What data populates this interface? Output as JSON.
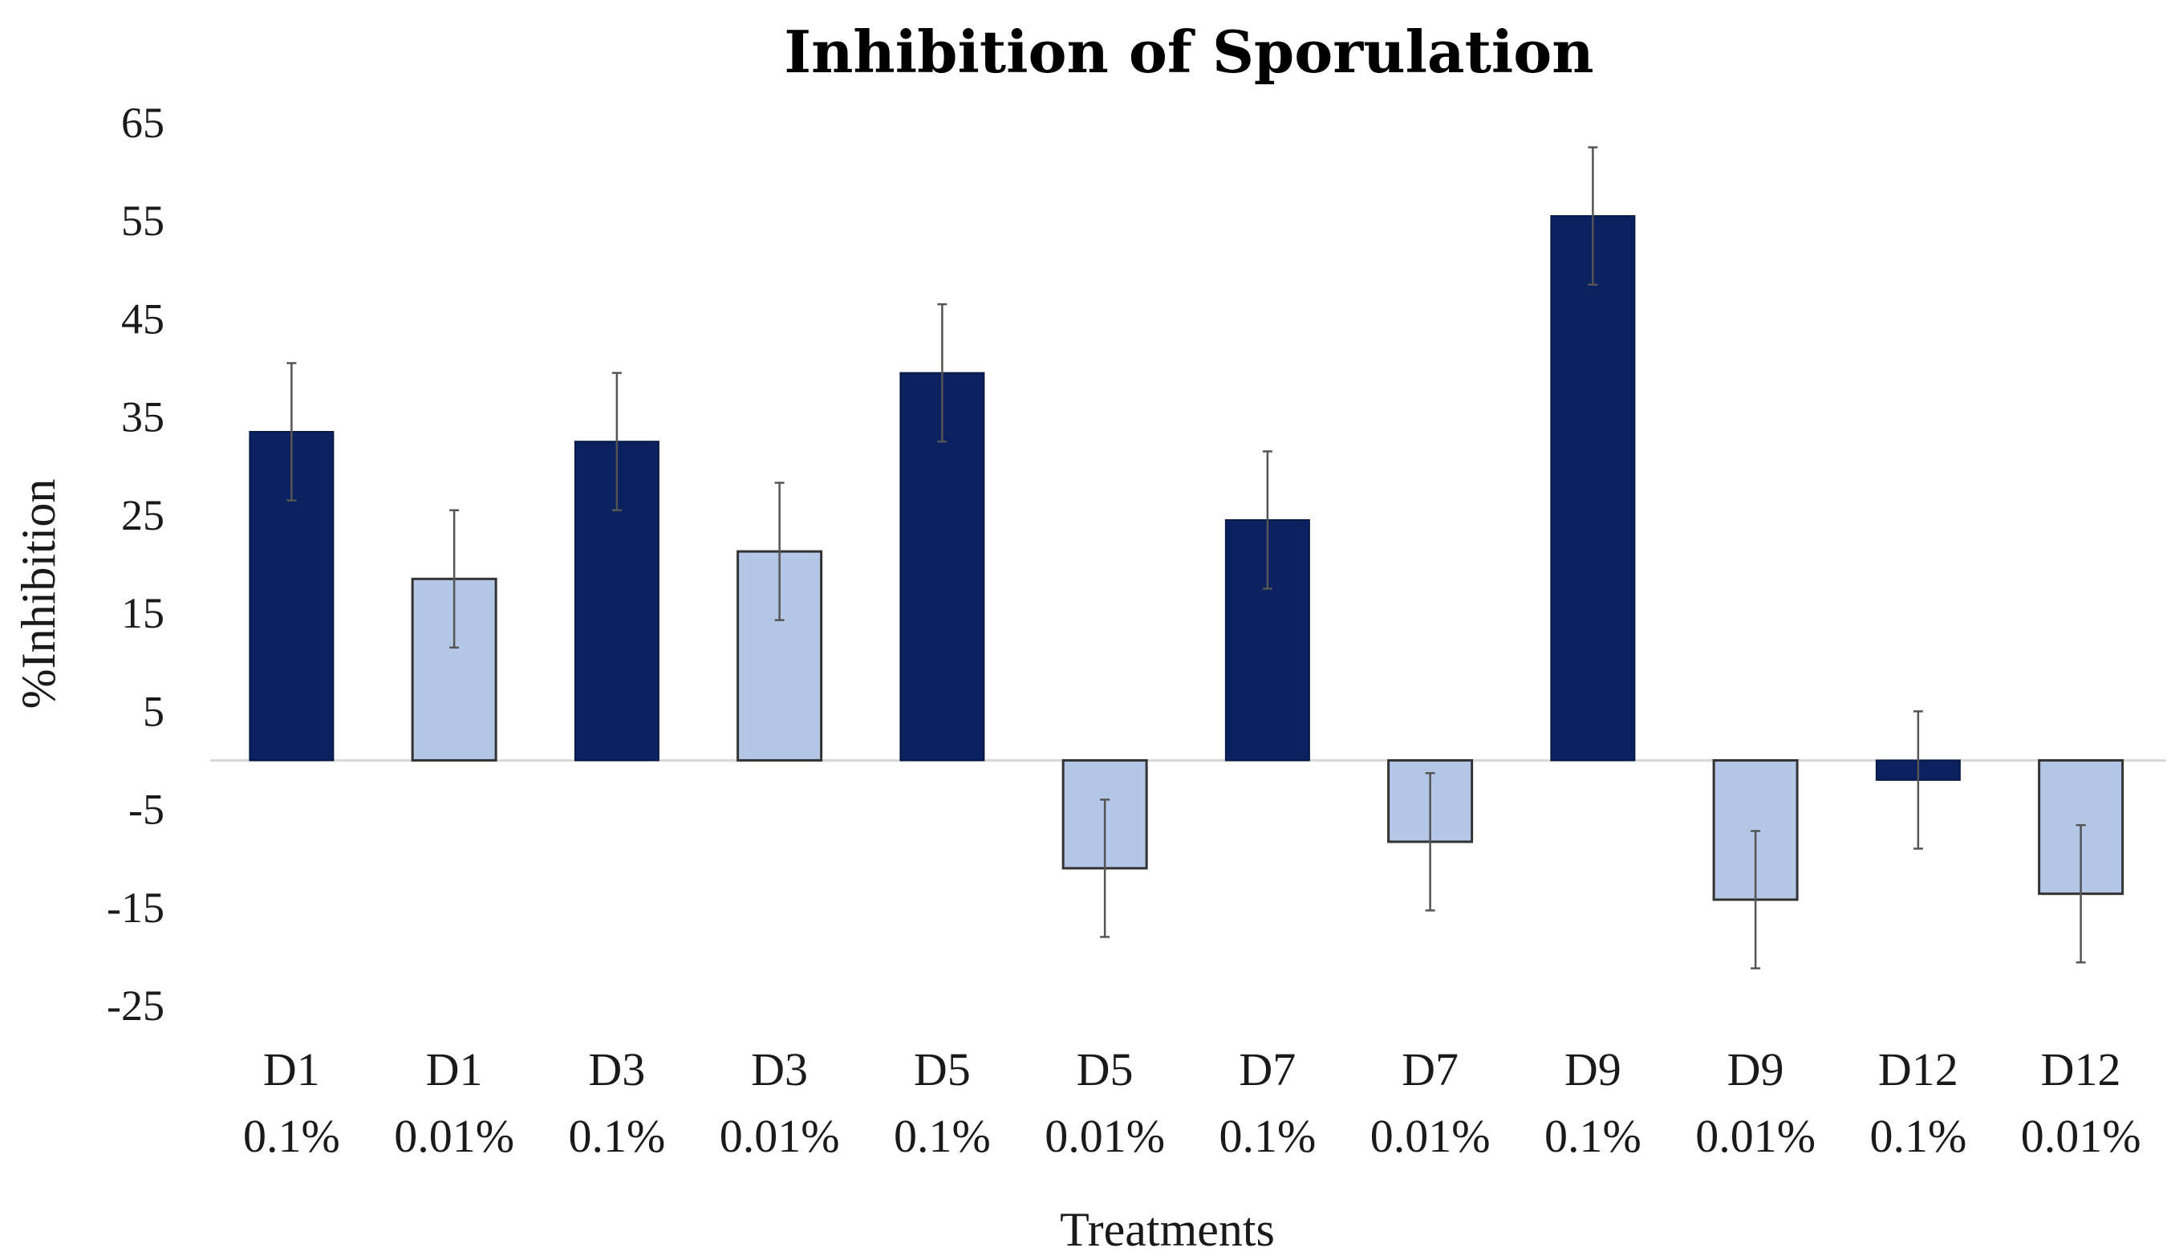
{
  "chart_data": {
    "type": "bar",
    "title": "Inhibition of Sporulation",
    "xlabel": "Treatments",
    "ylabel": "%Inhibition",
    "ylim": [
      -25,
      65
    ],
    "yticks": [
      "65",
      "55",
      "45",
      "35",
      "25",
      "15",
      "5",
      "-5",
      "-15",
      "-25"
    ],
    "ytick_values": [
      65,
      55,
      45,
      35,
      25,
      15,
      5,
      -5,
      -15,
      -25
    ],
    "grid": false,
    "colors": {
      "0.1%": "#0b2160",
      "0.01%": "#b4c7e7"
    },
    "bars": [
      {
        "line1": "D1",
        "line2": "0.1%",
        "series": "0.1%",
        "value": 33.5,
        "err": 7
      },
      {
        "line1": "D1",
        "line2": "0.01%",
        "series": "0.01%",
        "value": 18.5,
        "err": 7
      },
      {
        "line1": "D3",
        "line2": "0.1%",
        "series": "0.1%",
        "value": 32.5,
        "err": 7
      },
      {
        "line1": "D3",
        "line2": "0.01%",
        "series": "0.01%",
        "value": 21.3,
        "err": 7
      },
      {
        "line1": "D5",
        "line2": "0.1%",
        "series": "0.1%",
        "value": 39.5,
        "err": 7
      },
      {
        "line1": "D5",
        "line2": "0.01%",
        "series": "0.01%",
        "value": -11.0,
        "err": 7
      },
      {
        "line1": "D7",
        "line2": "0.1%",
        "series": "0.1%",
        "value": 24.5,
        "err": 7
      },
      {
        "line1": "D7",
        "line2": "0.01%",
        "series": "0.01%",
        "value": -8.3,
        "err": 7
      },
      {
        "line1": "D9",
        "line2": "0.1%",
        "series": "0.1%",
        "value": 55.5,
        "err": 7
      },
      {
        "line1": "D9",
        "line2": "0.01%",
        "series": "0.01%",
        "value": -14.2,
        "err": 7
      },
      {
        "line1": "D12",
        "line2": "0.1%",
        "series": "0.1%",
        "value": -2.0,
        "err": 7
      },
      {
        "line1": "D12",
        "line2": "0.01%",
        "series": "0.01%",
        "value": -13.6,
        "err": 7
      }
    ]
  }
}
